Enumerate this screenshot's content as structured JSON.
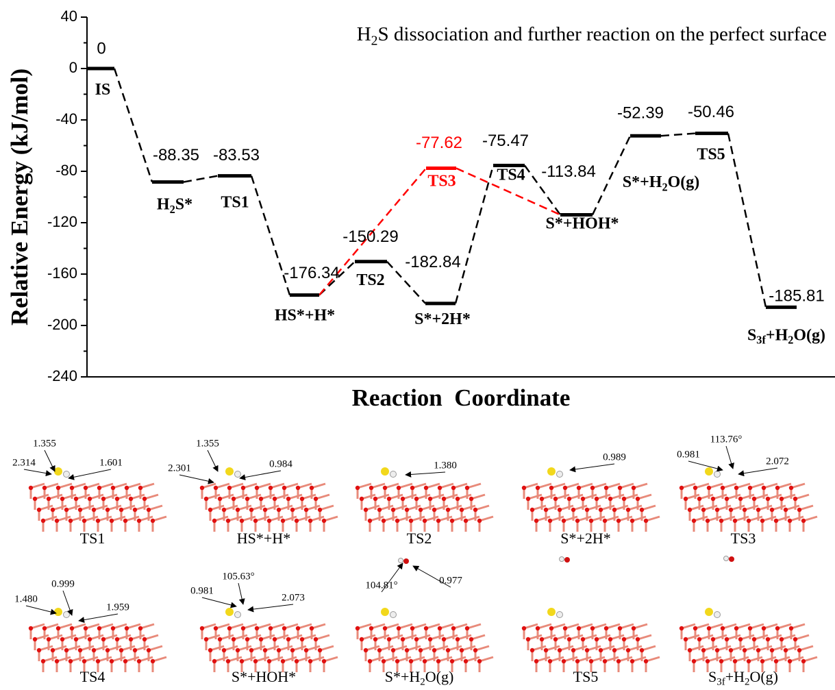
{
  "chart_data": {
    "type": "energy-profile",
    "title": [
      "H",
      "2",
      "S dissociation and further reaction on the perfect surface"
    ],
    "y_label": "Relative Energy (kJ/mol)",
    "x_label": "Reaction  Coordinate",
    "ylim": [
      -240,
      40
    ],
    "yticks": [
      -240,
      -200,
      -160,
      -120,
      -80,
      -40,
      0,
      40
    ],
    "levels": [
      {
        "label": [
          "IS"
        ],
        "value": 0,
        "color": "#000000"
      },
      {
        "label": [
          "H",
          "2",
          "S*"
        ],
        "value": -88.35,
        "color": "#000000"
      },
      {
        "label": [
          "TS1"
        ],
        "value": -83.53,
        "color": "#000000"
      },
      {
        "label": [
          "HS*+H*"
        ],
        "value": -176.34,
        "color": "#000000"
      },
      {
        "label": [
          "TS2"
        ],
        "value": -150.29,
        "color": "#000000"
      },
      {
        "label": [
          "S*+2H*"
        ],
        "value": -182.84,
        "color": "#000000"
      },
      {
        "label": [
          "TS3"
        ],
        "value": -77.62,
        "color": "#ff0000"
      },
      {
        "label": [
          "TS4"
        ],
        "value": -75.47,
        "color": "#000000"
      },
      {
        "label": [
          "S*+HOH*"
        ],
        "value": -113.84,
        "color": "#000000"
      },
      {
        "label": [
          "S*+H",
          "2",
          "O(g)"
        ],
        "value": -52.39,
        "color": "#000000"
      },
      {
        "label": [
          "TS5"
        ],
        "value": -50.46,
        "color": "#000000"
      },
      {
        "label": [
          "S",
          "3f",
          "+H",
          "2",
          "O(g)"
        ],
        "value": -185.81,
        "color": "#000000"
      }
    ]
  },
  "structures": [
    {
      "caption": [
        "TS1"
      ],
      "annotations": [
        "1.355",
        "2.314",
        "1.601"
      ]
    },
    {
      "caption": [
        "HS*+H*"
      ],
      "annotations": [
        "1.355",
        "2.301",
        "0.984"
      ]
    },
    {
      "caption": [
        "TS2"
      ],
      "annotations": [
        "1.380"
      ]
    },
    {
      "caption": [
        "S*+2H*"
      ],
      "annotations": [
        "0.989"
      ]
    },
    {
      "caption": [
        "TS3"
      ],
      "annotations": [
        "113.76°",
        "0.981",
        "2.072"
      ]
    },
    {
      "caption": [
        "TS4"
      ],
      "annotations": [
        "0.999",
        "1.480",
        "1.959"
      ]
    },
    {
      "caption": [
        "S*+HOH*"
      ],
      "annotations": [
        "105.63°",
        "0.981",
        "2.073"
      ]
    },
    {
      "caption": [
        "S*+H",
        "2",
        "O(g)"
      ],
      "annotations": [
        "104.81°",
        "0.977"
      ]
    },
    {
      "caption": [
        "TS5"
      ],
      "annotations": []
    },
    {
      "caption": [
        "S",
        "3f",
        "+H",
        "2",
        "O(g)"
      ],
      "annotations": []
    }
  ]
}
